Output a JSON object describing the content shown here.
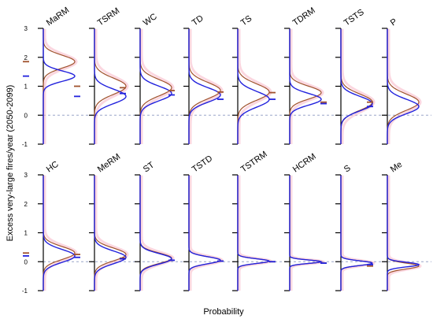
{
  "chart_data": {
    "type": "density-small-multiples",
    "ylabel": "Excess very-large fires/year (2050-2099)",
    "xlabel": "Probability",
    "ylim": [
      -1,
      3
    ],
    "yticks": [
      "-1",
      "0",
      "1",
      "2",
      "3"
    ],
    "reference_line": 0,
    "colors": {
      "series_a": "#a0522d",
      "series_b": "#2222dd",
      "band": "#f7b6c6",
      "reference": "#9aa6c8"
    },
    "rows": [
      [
        {
          "label": "MaRM",
          "mean_a": 1.85,
          "sd_a": 0.22,
          "mean_b": 1.35,
          "sd_b": 0.18
        },
        {
          "label": "TSRM",
          "mean_a": 1.0,
          "sd_a": 0.28,
          "mean_b": 0.65,
          "sd_b": 0.25
        },
        {
          "label": "WC",
          "mean_a": 0.95,
          "sd_a": 0.28,
          "mean_b": 0.75,
          "sd_b": 0.25
        },
        {
          "label": "TD",
          "mean_a": 0.85,
          "sd_a": 0.28,
          "mean_b": 0.7,
          "sd_b": 0.25
        },
        {
          "label": "TS",
          "mean_a": 0.8,
          "sd_a": 0.28,
          "mean_b": 0.55,
          "sd_b": 0.27
        },
        {
          "label": "TDRM",
          "mean_a": 0.78,
          "sd_a": 0.22,
          "mean_b": 0.55,
          "sd_b": 0.2
        },
        {
          "label": "TSTS",
          "mean_a": 0.45,
          "sd_a": 0.28,
          "mean_b": 0.4,
          "sd_b": 0.25
        },
        {
          "label": "P",
          "mean_a": 0.45,
          "sd_a": 0.28,
          "mean_b": 0.3,
          "sd_b": 0.25
        }
      ],
      [
        {
          "label": "HC",
          "mean_a": 0.3,
          "sd_a": 0.22,
          "mean_b": 0.2,
          "sd_b": 0.22
        },
        {
          "label": "MeRM",
          "mean_a": 0.25,
          "sd_a": 0.22,
          "mean_b": 0.15,
          "sd_b": 0.22
        },
        {
          "label": "ST",
          "mean_a": 0.12,
          "sd_a": 0.18,
          "mean_b": 0.1,
          "sd_b": 0.18
        },
        {
          "label": "TSTD",
          "mean_a": 0.05,
          "sd_a": 0.12,
          "mean_b": 0.05,
          "sd_b": 0.12
        },
        {
          "label": "TSTRM",
          "mean_a": 0.02,
          "sd_a": 0.08,
          "mean_b": 0.02,
          "sd_b": 0.08
        },
        {
          "label": "HCRM",
          "mean_a": 0.0,
          "sd_a": 0.06,
          "mean_b": 0.0,
          "sd_b": 0.06
        },
        {
          "label": "S",
          "mean_a": -0.05,
          "sd_a": 0.08,
          "mean_b": -0.05,
          "sd_b": 0.08
        },
        {
          "label": "Me",
          "mean_a": -0.15,
          "sd_a": 0.1,
          "mean_b": -0.1,
          "sd_b": 0.08
        }
      ]
    ]
  }
}
